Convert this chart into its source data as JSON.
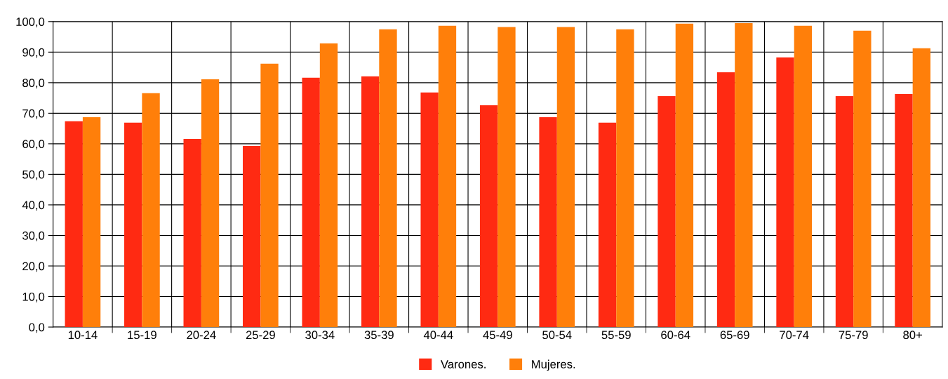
{
  "chart_data": {
    "type": "bar",
    "categories": [
      "10-14",
      "15-19",
      "20-24",
      "25-29",
      "30-34",
      "35-39",
      "40-44",
      "45-49",
      "50-54",
      "55-59",
      "60-64",
      "65-69",
      "70-74",
      "75-79",
      "80+"
    ],
    "series": [
      {
        "name": "Varones.",
        "color": "#ff2a12",
        "values": [
          67.4,
          66.9,
          61.6,
          59.3,
          81.6,
          82.1,
          76.8,
          72.6,
          68.7,
          66.9,
          75.6,
          83.4,
          88.3,
          75.6,
          76.3
        ]
      },
      {
        "name": "Mujeres.",
        "color": "#ff7f0a",
        "values": [
          68.7,
          76.6,
          81.1,
          86.2,
          92.9,
          97.5,
          98.6,
          98.2,
          98.2,
          97.5,
          99.3,
          99.5,
          98.6,
          97.0,
          91.3
        ]
      }
    ],
    "ylim": [
      0,
      100
    ],
    "yticks": [
      {
        "value": 0,
        "label": "0,0"
      },
      {
        "value": 10,
        "label": "10,0"
      },
      {
        "value": 20,
        "label": "20,0"
      },
      {
        "value": 30,
        "label": "30,0"
      },
      {
        "value": 40,
        "label": "40,0"
      },
      {
        "value": 50,
        "label": "50,0"
      },
      {
        "value": 60,
        "label": "60,0"
      },
      {
        "value": 70,
        "label": "70,0"
      },
      {
        "value": 80,
        "label": "80,0"
      },
      {
        "value": 90,
        "label": "90,0"
      },
      {
        "value": 100,
        "label": "100,0"
      }
    ],
    "grid": true,
    "legend": "bottom"
  }
}
